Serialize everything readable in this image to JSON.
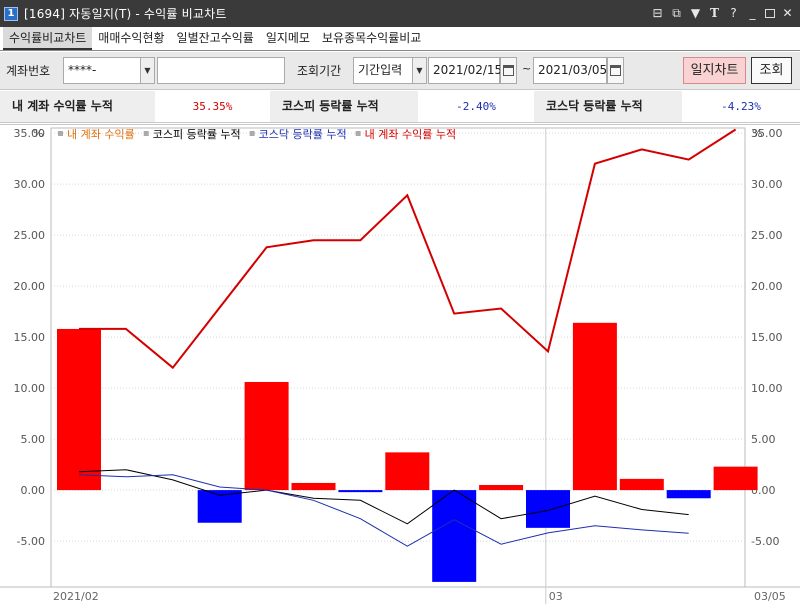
{
  "window": {
    "icon_text": "1",
    "title": "[1694] 자동일지(T) - 수익률 비교차트",
    "controls": [
      "restore-icon",
      "tile-icon",
      "pin-icon",
      "font-icon",
      "help-icon",
      "minimize-icon",
      "maximize-icon",
      "close-icon"
    ]
  },
  "tabs": [
    "수익률비교차트",
    "매매수익현황",
    "일별잔고수익률",
    "일지메모",
    "보유종목수익률비교"
  ],
  "toolbar": {
    "account_label": "계좌번호",
    "account_value": "****-",
    "account_name_value": "",
    "period_label": "조회기간",
    "period_mode": "기간입력",
    "start_date": "2021/02/15",
    "tilde": "~",
    "end_date": "2021/03/05",
    "daily_chart_button": "일지차트",
    "query_button": "조회"
  },
  "summary": {
    "my_label": "내 계좌 수익률 누적",
    "my_value": "35.35%",
    "kospi_label": "코스피 등락률 누적",
    "kospi_value": "-2.40%",
    "kosdaq_label": "코스닥 등락률 누적",
    "kosdaq_value": "-4.23%"
  },
  "chart_data": {
    "type": "bar+line",
    "unit_left": "%",
    "unit_right": "%",
    "ylim": [
      -9.5,
      35.5
    ],
    "yticks": [
      "35.00",
      "30.00",
      "25.00",
      "20.00",
      "15.00",
      "10.00",
      "5.00",
      "0.00",
      "-5.00"
    ],
    "ytick_values": [
      35,
      30,
      25,
      20,
      15,
      10,
      5,
      0,
      -5
    ],
    "x_labels": [
      {
        "label": "2021/02",
        "index": 0
      },
      {
        "label": "03",
        "index": 10
      },
      {
        "label": "03/05",
        "index": 14
      }
    ],
    "legend": [
      {
        "name": "내 계좌 수익률",
        "color": "#e07010"
      },
      {
        "name": "코스피 등락률 누적",
        "color": "#000000"
      },
      {
        "name": "코스닥 등락률 누적",
        "color": "#1d2fb0"
      },
      {
        "name": "내 계좌 수익률 누적",
        "color": "#d40000"
      }
    ],
    "daily_bars": [
      15.8,
      0,
      0,
      -3.2,
      10.6,
      0.7,
      -0.2,
      3.7,
      -9.0,
      0.5,
      -3.7,
      16.4,
      1.1,
      -0.8,
      2.3
    ],
    "series": [
      {
        "name": "내 계좌 수익률 누적",
        "color": "#d40000",
        "values": [
          15.8,
          15.8,
          12.0,
          null,
          23.8,
          24.5,
          24.5,
          28.9,
          17.3,
          17.8,
          13.6,
          32.0,
          33.4,
          32.4,
          35.35
        ]
      },
      {
        "name": "코스피 등락률 누적",
        "color": "#000000",
        "values": [
          1.8,
          2.0,
          1.0,
          -0.5,
          0.0,
          -0.8,
          -1.0,
          -3.3,
          0.0,
          -2.8,
          -2.0,
          -0.6,
          -1.9,
          -2.4,
          null
        ]
      },
      {
        "name": "코스닥 등락률 누적",
        "color": "#1d2fb0",
        "values": [
          1.5,
          1.3,
          1.5,
          0.3,
          0.0,
          -1.0,
          -2.8,
          -5.5,
          -2.9,
          -5.3,
          -4.2,
          -3.5,
          -3.9,
          -4.23,
          null
        ]
      }
    ]
  }
}
